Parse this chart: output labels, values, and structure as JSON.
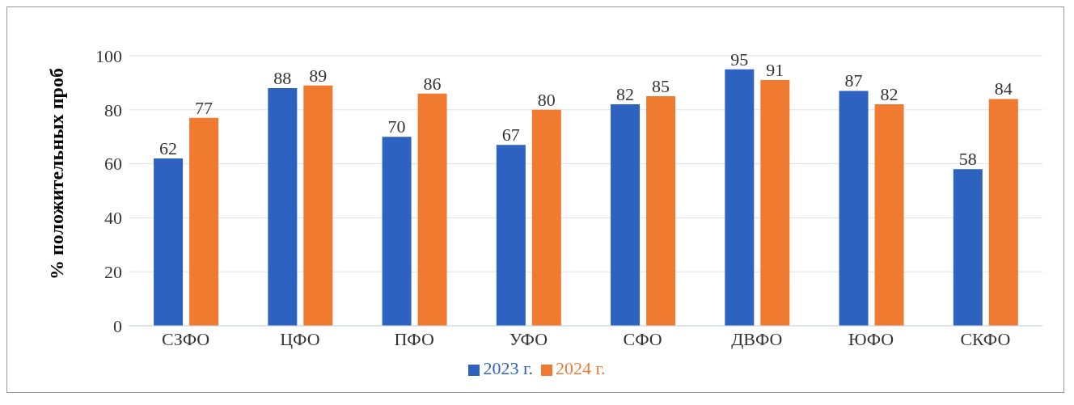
{
  "chart_data": {
    "type": "bar",
    "ylabel": "% положительных проб",
    "categories": [
      "СЗФО",
      "ЦФО",
      "ПФО",
      "УФО",
      "СФО",
      "ДВФО",
      "ЮФО",
      "СКФО"
    ],
    "series": [
      {
        "name": "2023 г.",
        "color": "#2e62c0",
        "values": [
          62,
          88,
          70,
          67,
          82,
          95,
          87,
          58
        ]
      },
      {
        "name": "2024 г.",
        "color": "#ef7a30",
        "values": [
          77,
          89,
          86,
          80,
          85,
          91,
          82,
          84
        ]
      }
    ],
    "ylim": [
      0,
      100
    ],
    "yticks": [
      0,
      20,
      40,
      60,
      80,
      100
    ],
    "grid": "y",
    "legend": "bottom",
    "data_labels": true
  }
}
